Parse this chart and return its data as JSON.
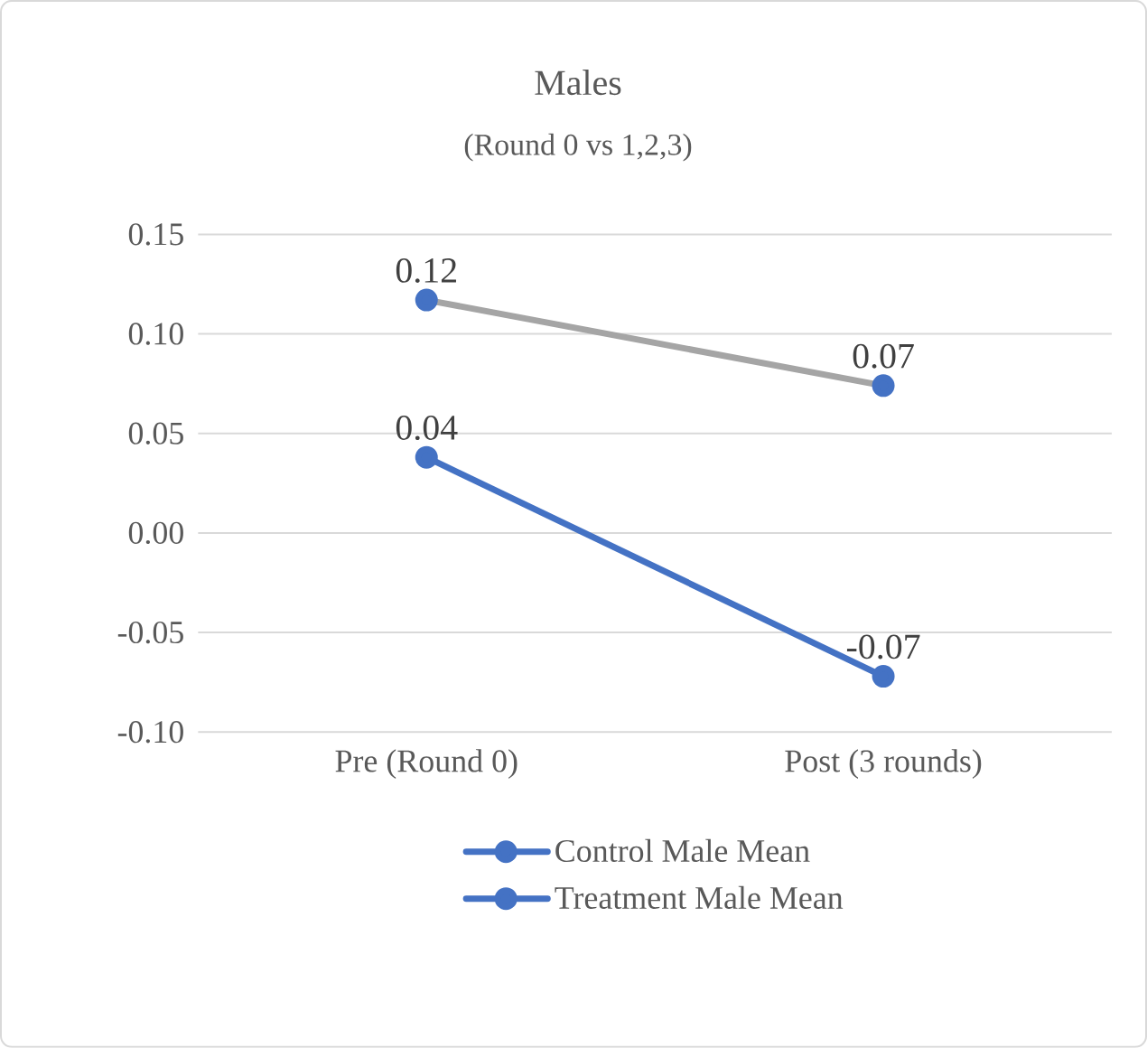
{
  "chart_data": {
    "type": "line",
    "title": "Males",
    "subtitle": "(Round 0 vs 1,2,3)",
    "categories": [
      "Pre (Round 0)",
      "Post (3 rounds)"
    ],
    "series": [
      {
        "name": "Control Male Mean",
        "color": "#a5a5a5",
        "colors": [
          "#4472c4",
          "#4472c4"
        ],
        "values": [
          0.117,
          0.074
        ],
        "value_labels": [
          "0.12",
          "0.07"
        ]
      },
      {
        "name": "Treatment Male Mean",
        "color": "#4472c4",
        "values": [
          0.038,
          -0.072
        ],
        "value_labels": [
          "0.04",
          "-0.07"
        ]
      }
    ],
    "ylim": [
      -0.1,
      0.15
    ],
    "yticks": [
      {
        "value": -0.1,
        "label": "-0.10"
      },
      -0.05,
      {
        "value": 0,
        "label": "0.00"
      },
      0.05,
      {
        "value": 0.1,
        "label": "0.10"
      },
      0.15
    ],
    "grid": "y",
    "legend": "bottom",
    "marker": "circle",
    "line_style": "solid"
  }
}
